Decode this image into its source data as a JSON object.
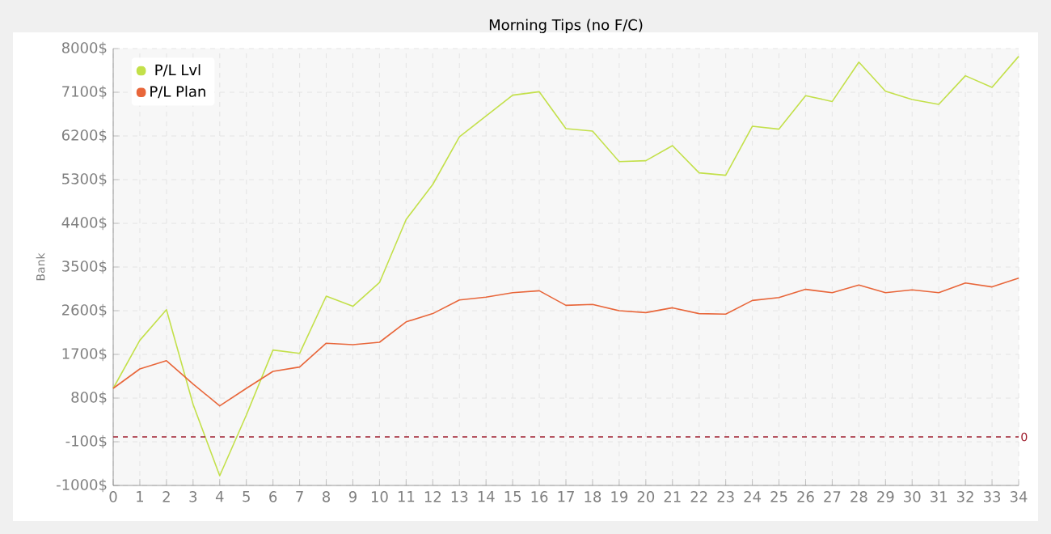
{
  "chart_data": {
    "type": "line",
    "title": "Morning Tips (no F/C)",
    "ylabel": "Bank",
    "x": [
      0,
      1,
      2,
      3,
      4,
      5,
      6,
      7,
      8,
      9,
      10,
      11,
      12,
      13,
      14,
      15,
      16,
      17,
      18,
      19,
      20,
      21,
      22,
      23,
      24,
      25,
      26,
      27,
      28,
      29,
      30,
      31,
      32,
      33,
      34
    ],
    "series": [
      {
        "name": "P/L Lvl",
        "color": "#c3e04a",
        "values": [
          1000,
          1990,
          2620,
          670,
          -800,
          450,
          1790,
          1720,
          2900,
          2690,
          3180,
          4480,
          5200,
          6180,
          6610,
          7040,
          7110,
          6350,
          6300,
          5670,
          5690,
          6000,
          5440,
          5390,
          6400,
          6340,
          7030,
          6910,
          7720,
          7120,
          6950,
          6850,
          7440,
          7200,
          7840
        ]
      },
      {
        "name": "P/L Plan",
        "color": "#e8663a",
        "values": [
          1000,
          1400,
          1570,
          1090,
          640,
          1000,
          1350,
          1440,
          1930,
          1900,
          1950,
          2370,
          2540,
          2820,
          2880,
          2970,
          3010,
          2710,
          2730,
          2600,
          2560,
          2660,
          2540,
          2530,
          2810,
          2870,
          3040,
          2970,
          3130,
          2970,
          3030,
          2970,
          3170,
          3090,
          3270
        ]
      }
    ],
    "xlim": [
      0,
      34
    ],
    "xticks": [
      0,
      1,
      2,
      3,
      4,
      5,
      6,
      7,
      8,
      9,
      10,
      11,
      12,
      13,
      14,
      15,
      16,
      17,
      18,
      19,
      20,
      21,
      22,
      23,
      24,
      25,
      26,
      27,
      28,
      29,
      30,
      31,
      32,
      33,
      34
    ],
    "ylim": [
      -1000,
      8000
    ],
    "yticks": [
      {
        "value": -1000,
        "label": "-1000$"
      },
      {
        "value": -100,
        "label": "-100$"
      },
      {
        "value": 800,
        "label": "800$"
      },
      {
        "value": 1700,
        "label": "1700$"
      },
      {
        "value": 2600,
        "label": "2600$"
      },
      {
        "value": 3500,
        "label": "3500$"
      },
      {
        "value": 4400,
        "label": "4400$"
      },
      {
        "value": 5300,
        "label": "5300$"
      },
      {
        "value": 6200,
        "label": "6200$"
      },
      {
        "value": 7100,
        "label": "7100$"
      },
      {
        "value": 8000,
        "label": "8000$"
      }
    ],
    "ref_lines": [
      {
        "axis": "y",
        "value": 0,
        "label": "0",
        "color": "#a02030",
        "line_style": "dashed"
      }
    ],
    "grid": true,
    "legend": "top left",
    "marker": "none",
    "line_style": "solid"
  }
}
